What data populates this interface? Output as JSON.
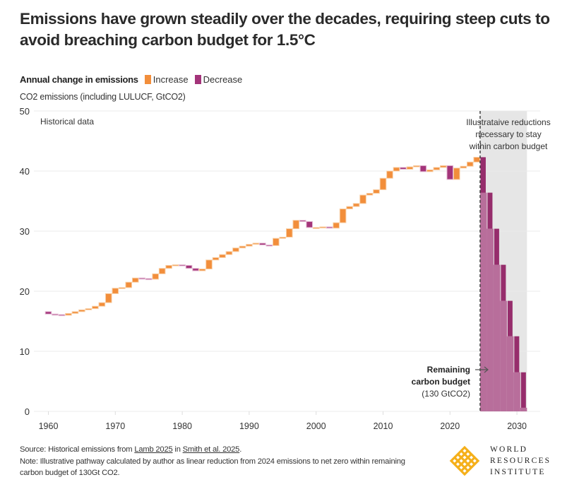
{
  "title": "Emissions have grown steadily over the decades, requiring steep cuts to avoid breaching carbon budget for 1.5°C",
  "legend": {
    "title": "Annual change in emissions",
    "items": [
      {
        "label": "Increase",
        "color": "#F28E3B"
      },
      {
        "label": "Decrease",
        "color": "#A3347A"
      }
    ]
  },
  "colors": {
    "increase": "#F28E3B",
    "decrease": "#A3347A",
    "projection_area": "#B86E9B",
    "projection_step": "#962D6C",
    "shade": "#E6E6E6",
    "grid": "#EBEBEB"
  },
  "footer": {
    "source_prefix": "Source: Historical emissions from ",
    "source_link1": "Lamb 2025",
    "source_mid": " in ",
    "source_link2": "Smith et al. 2025",
    "source_suffix": ".",
    "note": "Note: Illustrative pathway calculated by author as linear reduction from 2024 emissions to net zero within remaining carbon budget of 130Gt CO2."
  },
  "logo": {
    "line1": "WORLD",
    "line2": "RESOURCES",
    "line3": "INSTITUTE"
  },
  "chart_data": {
    "type": "bar",
    "subtype": "waterfall",
    "title": "Emissions have grown steadily over the decades, requiring steep cuts to avoid breaching carbon budget for 1.5°C",
    "ylabel": "CO2 emissions (including  LULUCF, GtCO2)",
    "xlabel": "",
    "ylim": [
      0,
      50
    ],
    "xlim": [
      1958.5,
      2033.5
    ],
    "yticks": [
      0,
      10,
      20,
      30,
      40,
      50
    ],
    "xticks": [
      1960,
      1970,
      1980,
      1990,
      2000,
      2010,
      2020,
      2030
    ],
    "grid": true,
    "legend_position": "top-left",
    "annotations": {
      "historical": "Historical data",
      "projection": [
        "Illustrataive reductions",
        "necessary to stay",
        "within carbon budget"
      ],
      "budget_bold": [
        "Remaining",
        "carbon budget"
      ],
      "budget_value": "(130 GtCO2)"
    },
    "projection_start_year": 2024.5,
    "historical_years": [
      1959,
      1960,
      1961,
      1962,
      1963,
      1964,
      1965,
      1966,
      1967,
      1968,
      1969,
      1970,
      1971,
      1972,
      1973,
      1974,
      1975,
      1976,
      1977,
      1978,
      1979,
      1980,
      1981,
      1982,
      1983,
      1984,
      1985,
      1986,
      1987,
      1988,
      1989,
      1990,
      1991,
      1992,
      1993,
      1994,
      1995,
      1996,
      1997,
      1998,
      1999,
      2000,
      2001,
      2002,
      2003,
      2004,
      2005,
      2006,
      2007,
      2008,
      2009,
      2010,
      2011,
      2012,
      2013,
      2014,
      2015,
      2016,
      2017,
      2018,
      2019,
      2020,
      2021,
      2022,
      2023,
      2024
    ],
    "historical_emissions": [
      16.6,
      16.2,
      16.1,
      16.0,
      16.3,
      16.6,
      16.9,
      17.1,
      17.5,
      18.1,
      19.6,
      20.5,
      20.6,
      21.5,
      22.2,
      22.1,
      22.0,
      22.9,
      23.8,
      24.3,
      24.4,
      24.3,
      23.8,
      23.4,
      23.7,
      25.2,
      25.6,
      26.1,
      26.6,
      27.2,
      27.5,
      27.8,
      28.0,
      27.7,
      27.6,
      28.8,
      29.0,
      30.4,
      31.8,
      31.6,
      30.6,
      30.6,
      30.7,
      30.5,
      31.4,
      33.7,
      34.1,
      34.6,
      36.0,
      36.3,
      36.9,
      38.8,
      40.0,
      40.6,
      40.3,
      40.7,
      40.9,
      39.9,
      40.2,
      40.6,
      40.9,
      38.6,
      40.5,
      40.8,
      41.5,
      42.3
    ],
    "projection_years": [
      2025,
      2026,
      2027,
      2028,
      2029,
      2030,
      2031
    ],
    "projection_emissions": [
      36.4,
      30.4,
      24.4,
      18.4,
      12.5,
      6.5,
      0.6
    ]
  }
}
